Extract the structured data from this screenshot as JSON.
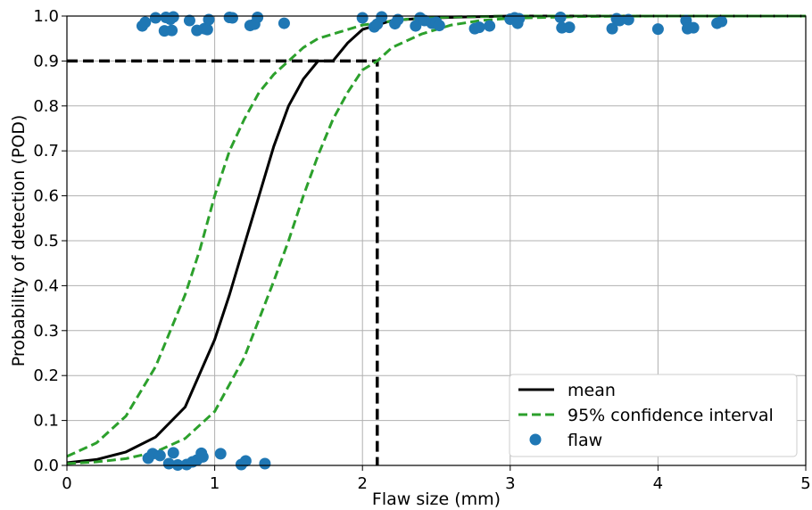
{
  "chart_data": {
    "type": "line",
    "xlabel": "Flaw size (mm)",
    "ylabel": "Probability of detection (POD)",
    "xlim": [
      0,
      5
    ],
    "ylim": [
      0,
      1
    ],
    "xticks": [
      "0",
      "1",
      "2",
      "3",
      "4",
      "5"
    ],
    "yticks": [
      "0.0",
      "0.1",
      "0.2",
      "0.3",
      "0.4",
      "0.5",
      "0.6",
      "0.7",
      "0.8",
      "0.9",
      "1.0"
    ],
    "grid": true,
    "legend_position": "bottom-right",
    "series": [
      {
        "name": "mean",
        "style": "solid",
        "color": "#000000",
        "x": [
          0,
          0.2,
          0.4,
          0.6,
          0.8,
          1.0,
          1.1,
          1.2,
          1.3,
          1.4,
          1.5,
          1.6,
          1.7,
          1.8,
          1.9,
          2.0,
          2.2,
          2.4,
          2.7,
          3.0,
          4.0,
          5.0
        ],
        "y": [
          0.006,
          0.013,
          0.03,
          0.063,
          0.13,
          0.28,
          0.38,
          0.49,
          0.6,
          0.71,
          0.8,
          0.86,
          0.9,
          0.9,
          0.94,
          0.97,
          0.99,
          0.995,
          0.998,
          1.0,
          1.0,
          1.0
        ]
      },
      {
        "name": "95% confidence interval",
        "style": "dashed",
        "color": "#2ca02c",
        "x": [
          0,
          0.2,
          0.4,
          0.6,
          0.8,
          0.9,
          1.0,
          1.1,
          1.2,
          1.3,
          1.4,
          1.5,
          1.6,
          1.7,
          2.0,
          2.3,
          2.6,
          3.0,
          4.0,
          5.0
        ],
        "y": [
          0.02,
          0.05,
          0.11,
          0.22,
          0.38,
          0.48,
          0.6,
          0.7,
          0.77,
          0.83,
          0.87,
          0.9,
          0.93,
          0.95,
          0.98,
          0.993,
          0.998,
          1.0,
          1.0,
          1.0
        ]
      },
      {
        "name": "",
        "style": "dashed",
        "color": "#2ca02c",
        "x": [
          0,
          0.2,
          0.4,
          0.6,
          0.8,
          1.0,
          1.2,
          1.4,
          1.5,
          1.6,
          1.7,
          1.8,
          1.9,
          2.0,
          2.1,
          2.2,
          2.4,
          2.6,
          2.8,
          3.0,
          3.5,
          4.0,
          5.0
        ],
        "y": [
          0.004,
          0.008,
          0.015,
          0.03,
          0.06,
          0.12,
          0.24,
          0.41,
          0.5,
          0.6,
          0.69,
          0.77,
          0.83,
          0.88,
          0.9,
          0.93,
          0.96,
          0.98,
          0.99,
          0.995,
          0.999,
          1.0,
          1.0
        ]
      },
      {
        "name": "flaw",
        "style": "points",
        "color": "#1f77b4",
        "points": [
          [
            0.51,
            0.978
          ],
          [
            0.53,
            0.986
          ],
          [
            0.6,
            0.996
          ],
          [
            0.66,
            0.967
          ],
          [
            0.67,
            0.997
          ],
          [
            0.7,
            0.993
          ],
          [
            0.71,
            0.968
          ],
          [
            0.72,
            0.998
          ],
          [
            0.83,
            0.99
          ],
          [
            0.88,
            0.968
          ],
          [
            0.93,
            0.972
          ],
          [
            0.95,
            0.97
          ],
          [
            0.96,
            0.992
          ],
          [
            1.1,
            0.997
          ],
          [
            1.12,
            0.996
          ],
          [
            1.24,
            0.979
          ],
          [
            1.27,
            0.982
          ],
          [
            1.29,
            0.997
          ],
          [
            1.47,
            0.984
          ],
          [
            2.0,
            0.996
          ],
          [
            2.08,
            0.976
          ],
          [
            2.1,
            0.982
          ],
          [
            2.13,
            0.998
          ],
          [
            2.22,
            0.983
          ],
          [
            2.24,
            0.992
          ],
          [
            2.36,
            0.978
          ],
          [
            2.39,
            0.996
          ],
          [
            2.42,
            0.99
          ],
          [
            2.47,
            0.984
          ],
          [
            2.5,
            0.986
          ],
          [
            2.52,
            0.979
          ],
          [
            2.76,
            0.972
          ],
          [
            2.79,
            0.975
          ],
          [
            2.86,
            0.978
          ],
          [
            3.0,
            0.993
          ],
          [
            3.03,
            0.996
          ],
          [
            3.05,
            0.984
          ],
          [
            3.06,
            0.994
          ],
          [
            3.34,
            0.997
          ],
          [
            3.35,
            0.974
          ],
          [
            3.4,
            0.975
          ],
          [
            3.69,
            0.972
          ],
          [
            3.72,
            0.994
          ],
          [
            3.74,
            0.99
          ],
          [
            3.8,
            0.992
          ],
          [
            4.0,
            0.971
          ],
          [
            4.19,
            0.99
          ],
          [
            4.2,
            0.972
          ],
          [
            4.24,
            0.974
          ],
          [
            4.4,
            0.984
          ],
          [
            4.43,
            0.988
          ],
          [
            0.55,
            0.016
          ],
          [
            0.58,
            0.026
          ],
          [
            0.63,
            0.022
          ],
          [
            0.69,
            0.004
          ],
          [
            0.72,
            0.028
          ],
          [
            0.75,
            0.001
          ],
          [
            0.81,
            0.002
          ],
          [
            0.85,
            0.008
          ],
          [
            0.88,
            0.012
          ],
          [
            0.91,
            0.027
          ],
          [
            0.92,
            0.019
          ],
          [
            1.04,
            0.026
          ],
          [
            1.18,
            0.002
          ],
          [
            1.21,
            0.01
          ],
          [
            1.34,
            0.004
          ]
        ]
      }
    ],
    "annotations": [
      {
        "type": "dashed-reference",
        "color": "#000000",
        "x": 2.1,
        "y": 0.9
      }
    ]
  }
}
